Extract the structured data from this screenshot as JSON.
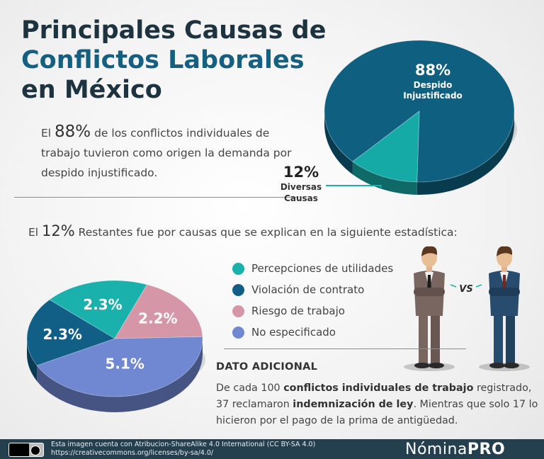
{
  "title": {
    "line1": "Principales Causas de",
    "line2": "Conflictos Laborales",
    "line3": "en México",
    "color_dark": "#1e3340",
    "color_blue": "#155f81"
  },
  "intro": {
    "prefix": "El ",
    "highlight": "88%",
    "text": " de los conflictos individuales de trabajo tuvieron como origen la demanda por despido injustificado."
  },
  "remaining": {
    "prefix": "El ",
    "highlight": "12%",
    "text": " Restantes fue por causas que se explican en la siguiente estadística:"
  },
  "chart_data": [
    {
      "type": "pie",
      "slices": [
        {
          "label_pct": "88%",
          "label": "Despido Injustificado",
          "value": 88,
          "color": "#0e5f80"
        },
        {
          "label_pct": "12%",
          "label": "Diversas Causas",
          "value": 12,
          "color": "#16aaa6"
        }
      ]
    },
    {
      "type": "pie",
      "slices": [
        {
          "label_pct": "2.3%",
          "label": "Percepciones de utilidades",
          "value": 2.3,
          "color": "#1ab0ab"
        },
        {
          "label_pct": "2.2%",
          "label": "Riesgo de trabajo",
          "value": 2.2,
          "color": "#d597a8"
        },
        {
          "label_pct": "5.1%",
          "label": "No especificado",
          "value": 5.1,
          "color": "#6f88d1"
        },
        {
          "label_pct": "2.3%",
          "label": "Violación de contrato",
          "value": 2.3,
          "color": "#115f86"
        }
      ],
      "legend": [
        {
          "label": "Percepciones de utilidades",
          "color": "#1ab0ab"
        },
        {
          "label": "Violación de contrato",
          "color": "#115f86"
        },
        {
          "label": "Riesgo de trabajo",
          "color": "#d597a8"
        },
        {
          "label": "No especificado",
          "color": "#6f88d1"
        }
      ]
    }
  ],
  "vs_label": "VS",
  "dato": {
    "title": "DATO ADICIONAL",
    "t1": "De cada 100 ",
    "b1": "conflictos individuales de trabajo",
    "t2": " registrado, 37 reclamaron ",
    "b2": "indemnización de ley",
    "t3": ". Mientras que solo 17 lo hicieron por el pago de la prima de antigüedad."
  },
  "footer": {
    "license_line1": "Esta imagen cuenta con Atribucion-ShareAlike 4.0 International (CC BY-SA 4.0)",
    "license_line2": "https://creativecommons.org/licenses/by-sa/4.0/",
    "brand_a": "Nómina",
    "brand_b": "PRO",
    "cc_badge": "cc-by-sa-icon"
  }
}
